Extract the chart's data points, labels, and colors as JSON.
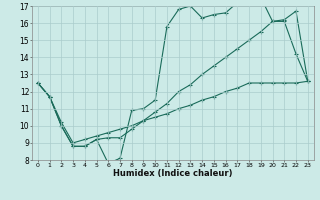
{
  "xlabel": "Humidex (Indice chaleur)",
  "bg_color": "#cceae7",
  "grid_color": "#aacccc",
  "line_color": "#1a6b5a",
  "line1_x": [
    0,
    1,
    2,
    3,
    4,
    5,
    6,
    7,
    8,
    9,
    10,
    11,
    12,
    13,
    14,
    15,
    16,
    17,
    18,
    19,
    20,
    21,
    22,
    23
  ],
  "line1_y": [
    12.5,
    11.7,
    10.0,
    8.8,
    8.8,
    9.2,
    7.8,
    8.1,
    10.9,
    11.0,
    11.5,
    15.8,
    16.8,
    17.0,
    16.3,
    16.5,
    16.6,
    17.2,
    17.5,
    17.5,
    16.1,
    16.1,
    14.2,
    12.6
  ],
  "line2_x": [
    0,
    1,
    2,
    3,
    4,
    5,
    6,
    7,
    8,
    9,
    10,
    11,
    12,
    13,
    14,
    15,
    16,
    17,
    18,
    19,
    20,
    21,
    22,
    23
  ],
  "line2_y": [
    12.5,
    11.7,
    10.0,
    8.8,
    8.8,
    9.2,
    9.3,
    9.3,
    9.8,
    10.3,
    10.8,
    11.3,
    12.0,
    12.4,
    13.0,
    13.5,
    14.0,
    14.5,
    15.0,
    15.5,
    16.1,
    16.2,
    16.7,
    12.6
  ],
  "line3_x": [
    0,
    1,
    2,
    3,
    4,
    5,
    6,
    7,
    8,
    9,
    10,
    11,
    12,
    13,
    14,
    15,
    16,
    17,
    18,
    19,
    20,
    21,
    22,
    23
  ],
  "line3_y": [
    12.5,
    11.7,
    10.2,
    9.0,
    9.2,
    9.4,
    9.6,
    9.8,
    10.0,
    10.3,
    10.5,
    10.7,
    11.0,
    11.2,
    11.5,
    11.7,
    12.0,
    12.2,
    12.5,
    12.5,
    12.5,
    12.5,
    12.5,
    12.6
  ],
  "xlim_min": -0.5,
  "xlim_max": 23.5,
  "ylim_min": 8,
  "ylim_max": 17,
  "yticks": [
    8,
    9,
    10,
    11,
    12,
    13,
    14,
    15,
    16,
    17
  ],
  "xticks": [
    0,
    1,
    2,
    3,
    4,
    5,
    6,
    7,
    8,
    9,
    10,
    11,
    12,
    13,
    14,
    15,
    16,
    17,
    18,
    19,
    20,
    21,
    22,
    23
  ]
}
